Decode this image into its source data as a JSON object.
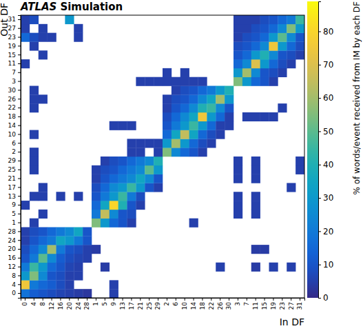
{
  "chart_data": {
    "type": "heatmap",
    "title": "ATLAS",
    "subtitle": "Simulation",
    "x_label": "In DF",
    "y_label": "Out DF",
    "z_label": "% of words/event received from IM by each DF",
    "categories": [
      "0",
      "4",
      "8",
      "12",
      "16",
      "20",
      "24",
      "28",
      "1",
      "5",
      "9",
      "13",
      "17",
      "21",
      "25",
      "29",
      "2",
      "6",
      "10",
      "14",
      "18",
      "22",
      "26",
      "30",
      "3",
      "7",
      "11",
      "15",
      "19",
      "23",
      "27",
      "31"
    ],
    "y_categories": [
      "0",
      "4",
      "8",
      "12",
      "16",
      "20",
      "24",
      "28",
      "1",
      "5",
      "9",
      "13",
      "17",
      "21",
      "25",
      "29",
      "2",
      "6",
      "10",
      "14",
      "18",
      "22",
      "26",
      "30",
      "3",
      "7",
      "11",
      "15",
      "19",
      "23",
      "27",
      "31"
    ],
    "zlim": [
      0,
      89
    ],
    "zticks": [
      0,
      10,
      20,
      30,
      40,
      50,
      60,
      70,
      80
    ],
    "z": [
      [
        18,
        12,
        10,
        8,
        6,
        5,
        4,
        3,
        null,
        null,
        5,
        null,
        null,
        null,
        null,
        null,
        null,
        null,
        null,
        null,
        null,
        null,
        null,
        null,
        null,
        null,
        null,
        null,
        null,
        null,
        null,
        null
      ],
      [
        75,
        20,
        15,
        12,
        8,
        5,
        null,
        null,
        null,
        null,
        5,
        null,
        null,
        null,
        null,
        null,
        null,
        null,
        null,
        null,
        null,
        null,
        null,
        null,
        null,
        null,
        null,
        null,
        null,
        null,
        null,
        null
      ],
      [
        30,
        55,
        25,
        10,
        8,
        5,
        5,
        null,
        null,
        null,
        null,
        null,
        null,
        null,
        null,
        null,
        null,
        null,
        null,
        null,
        null,
        null,
        null,
        null,
        null,
        null,
        null,
        null,
        null,
        null,
        null,
        null
      ],
      [
        20,
        45,
        30,
        15,
        10,
        6,
        5,
        null,
        null,
        4,
        null,
        null,
        null,
        null,
        null,
        null,
        null,
        null,
        null,
        null,
        null,
        null,
        5,
        null,
        null,
        null,
        4,
        null,
        5,
        null,
        5,
        null
      ],
      [
        10,
        20,
        50,
        25,
        12,
        8,
        6,
        5,
        null,
        null,
        null,
        null,
        null,
        null,
        null,
        null,
        null,
        null,
        null,
        null,
        null,
        null,
        null,
        null,
        null,
        null,
        null,
        null,
        null,
        null,
        null,
        null
      ],
      [
        8,
        15,
        25,
        60,
        20,
        10,
        8,
        5,
        4,
        null,
        null,
        null,
        null,
        null,
        null,
        null,
        null,
        null,
        null,
        null,
        null,
        null,
        null,
        null,
        null,
        null,
        4,
        4,
        null,
        null,
        null,
        null
      ],
      [
        5,
        10,
        15,
        20,
        35,
        30,
        20,
        10,
        null,
        null,
        null,
        null,
        null,
        null,
        null,
        null,
        null,
        null,
        null,
        null,
        null,
        null,
        null,
        null,
        null,
        null,
        null,
        null,
        null,
        null,
        null,
        null
      ],
      [
        5,
        8,
        10,
        15,
        20,
        25,
        35,
        10,
        null,
        null,
        null,
        null,
        null,
        null,
        null,
        null,
        null,
        null,
        null,
        null,
        null,
        null,
        null,
        null,
        null,
        null,
        null,
        null,
        null,
        null,
        null,
        null
      ],
      [
        null,
        5,
        null,
        null,
        null,
        null,
        null,
        null,
        55,
        30,
        15,
        10,
        5,
        null,
        null,
        null,
        null,
        null,
        null,
        5,
        null,
        null,
        null,
        null,
        null,
        null,
        null,
        null,
        null,
        null,
        null,
        null
      ],
      [
        null,
        null,
        5,
        null,
        null,
        null,
        null,
        null,
        20,
        65,
        25,
        10,
        8,
        null,
        null,
        null,
        null,
        null,
        null,
        null,
        null,
        null,
        null,
        null,
        5,
        null,
        5,
        null,
        null,
        null,
        null,
        null
      ],
      [
        5,
        null,
        null,
        null,
        null,
        null,
        null,
        null,
        15,
        35,
        80,
        40,
        10,
        5,
        null,
        null,
        null,
        null,
        null,
        null,
        null,
        null,
        null,
        null,
        5,
        null,
        5,
        null,
        null,
        null,
        null,
        null
      ],
      [
        null,
        5,
        5,
        null,
        5,
        null,
        5,
        null,
        10,
        20,
        30,
        45,
        20,
        8,
        null,
        null,
        null,
        null,
        null,
        null,
        null,
        null,
        null,
        null,
        5,
        null,
        5,
        null,
        null,
        null,
        null,
        null
      ],
      [
        null,
        null,
        5,
        null,
        null,
        null,
        null,
        null,
        8,
        15,
        25,
        30,
        45,
        30,
        10,
        5,
        null,
        null,
        null,
        null,
        null,
        null,
        null,
        null,
        null,
        null,
        null,
        null,
        null,
        null,
        5,
        null
      ],
      [
        null,
        null,
        null,
        null,
        null,
        null,
        null,
        null,
        5,
        10,
        15,
        20,
        25,
        35,
        25,
        10,
        null,
        null,
        null,
        null,
        null,
        null,
        null,
        null,
        5,
        null,
        5,
        null,
        null,
        null,
        null,
        null
      ],
      [
        null,
        5,
        null,
        null,
        null,
        null,
        null,
        null,
        5,
        8,
        10,
        15,
        20,
        25,
        50,
        30,
        null,
        null,
        null,
        null,
        null,
        null,
        null,
        null,
        5,
        null,
        5,
        null,
        null,
        null,
        null,
        5
      ],
      [
        null,
        5,
        null,
        null,
        null,
        null,
        null,
        null,
        null,
        5,
        8,
        10,
        15,
        20,
        25,
        40,
        null,
        null,
        null,
        null,
        null,
        null,
        null,
        null,
        5,
        null,
        5,
        null,
        null,
        null,
        null,
        5
      ],
      [
        null,
        5,
        null,
        null,
        null,
        null,
        null,
        null,
        null,
        null,
        null,
        null,
        5,
        5,
        null,
        5,
        55,
        25,
        15,
        10,
        5,
        null,
        null,
        null,
        null,
        null,
        null,
        null,
        null,
        null,
        null,
        null
      ],
      [
        null,
        null,
        null,
        null,
        null,
        null,
        null,
        null,
        null,
        null,
        null,
        null,
        5,
        5,
        5,
        5,
        30,
        60,
        30,
        15,
        8,
        5,
        null,
        null,
        null,
        null,
        null,
        null,
        null,
        null,
        null,
        null
      ],
      [
        null,
        5,
        null,
        null,
        null,
        null,
        null,
        null,
        null,
        null,
        null,
        null,
        null,
        null,
        null,
        null,
        15,
        35,
        65,
        35,
        15,
        8,
        5,
        null,
        null,
        null,
        null,
        null,
        null,
        null,
        null,
        null
      ],
      [
        null,
        null,
        null,
        null,
        null,
        null,
        null,
        null,
        null,
        null,
        5,
        5,
        5,
        null,
        null,
        null,
        10,
        20,
        30,
        45,
        30,
        15,
        5,
        5,
        null,
        null,
        null,
        null,
        null,
        null,
        null,
        null
      ],
      [
        null,
        null,
        null,
        null,
        null,
        null,
        null,
        null,
        null,
        null,
        null,
        null,
        null,
        null,
        null,
        null,
        8,
        15,
        25,
        35,
        75,
        30,
        15,
        5,
        null,
        5,
        5,
        5,
        5,
        null,
        null,
        null
      ],
      [
        null,
        5,
        null,
        null,
        null,
        null,
        null,
        null,
        null,
        null,
        null,
        null,
        null,
        null,
        null,
        null,
        5,
        10,
        15,
        25,
        40,
        45,
        25,
        10,
        null,
        null,
        null,
        null,
        null,
        5,
        null,
        null
      ],
      [
        null,
        5,
        5,
        null,
        null,
        null,
        null,
        null,
        null,
        null,
        null,
        null,
        null,
        null,
        null,
        null,
        5,
        8,
        10,
        15,
        25,
        35,
        60,
        30,
        null,
        null,
        null,
        null,
        null,
        null,
        null,
        null
      ],
      [
        null,
        5,
        null,
        null,
        null,
        null,
        null,
        null,
        null,
        null,
        null,
        null,
        null,
        null,
        null,
        null,
        null,
        5,
        8,
        10,
        15,
        20,
        30,
        40,
        null,
        null,
        null,
        null,
        null,
        null,
        null,
        null
      ],
      [
        null,
        null,
        null,
        null,
        null,
        null,
        null,
        null,
        null,
        null,
        null,
        null,
        null,
        5,
        5,
        5,
        5,
        5,
        5,
        5,
        5,
        null,
        null,
        null,
        55,
        30,
        15,
        10,
        5,
        null,
        null,
        null
      ],
      [
        null,
        null,
        null,
        null,
        null,
        null,
        null,
        null,
        null,
        null,
        null,
        null,
        null,
        null,
        null,
        null,
        5,
        null,
        5,
        null,
        null,
        null,
        null,
        null,
        30,
        60,
        25,
        10,
        8,
        5,
        null,
        null
      ],
      [
        5,
        null,
        null,
        null,
        null,
        null,
        null,
        null,
        null,
        null,
        null,
        null,
        null,
        null,
        null,
        null,
        null,
        null,
        null,
        null,
        null,
        null,
        null,
        null,
        15,
        25,
        70,
        30,
        15,
        8,
        5,
        null
      ],
      [
        null,
        null,
        5,
        null,
        null,
        null,
        null,
        null,
        null,
        null,
        null,
        null,
        null,
        null,
        null,
        null,
        null,
        null,
        null,
        null,
        null,
        null,
        null,
        null,
        10,
        15,
        30,
        40,
        25,
        10,
        8,
        5
      ],
      [
        null,
        5,
        null,
        null,
        null,
        null,
        null,
        null,
        null,
        null,
        null,
        null,
        null,
        null,
        null,
        null,
        null,
        null,
        null,
        null,
        null,
        null,
        null,
        null,
        8,
        10,
        15,
        25,
        75,
        30,
        15,
        8
      ],
      [
        15,
        8,
        5,
        5,
        null,
        null,
        5,
        null,
        null,
        null,
        null,
        null,
        null,
        null,
        null,
        null,
        null,
        null,
        null,
        null,
        null,
        null,
        null,
        null,
        5,
        8,
        10,
        15,
        30,
        50,
        25,
        10
      ],
      [
        5,
        null,
        5,
        null,
        null,
        null,
        5,
        null,
        null,
        null,
        null,
        null,
        null,
        null,
        null,
        null,
        null,
        null,
        null,
        null,
        null,
        null,
        null,
        null,
        5,
        5,
        8,
        10,
        15,
        25,
        55,
        30
      ],
      [
        5,
        8,
        null,
        null,
        null,
        30,
        null,
        null,
        null,
        null,
        null,
        null,
        null,
        null,
        null,
        null,
        null,
        null,
        null,
        null,
        null,
        null,
        null,
        null,
        5,
        5,
        5,
        8,
        10,
        15,
        20,
        45
      ]
    ]
  }
}
